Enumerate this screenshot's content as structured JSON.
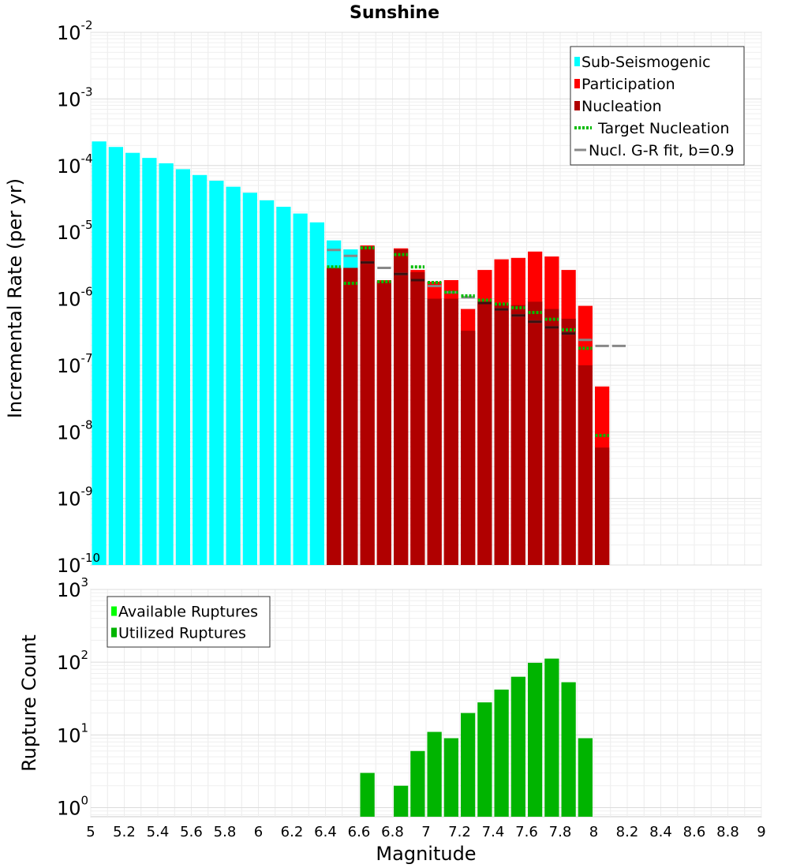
{
  "chart_data": [
    {
      "type": "bar",
      "title": "Sunshine",
      "xlabel": "",
      "ylabel": "Incremental Rate (per yr)",
      "xlim": [
        5,
        9
      ],
      "ylim": [
        1e-10,
        0.01
      ],
      "yscale": "log",
      "grid": true,
      "bin_width": 0.1,
      "legend_position": "top-right",
      "y_ticks": [
        {
          "base": "10",
          "exp": "-10",
          "value": 1e-10
        },
        {
          "base": "10",
          "exp": "-9",
          "value": 1e-09
        },
        {
          "base": "10",
          "exp": "-8",
          "value": 1e-08
        },
        {
          "base": "10",
          "exp": "-7",
          "value": 1e-07
        },
        {
          "base": "10",
          "exp": "-6",
          "value": 1e-06
        },
        {
          "base": "10",
          "exp": "-5",
          "value": 1e-05
        },
        {
          "base": "10",
          "exp": "-4",
          "value": 0.0001
        },
        {
          "base": "10",
          "exp": "-3",
          "value": 0.001
        },
        {
          "base": "10",
          "exp": "-2",
          "value": 0.01
        }
      ],
      "legend": [
        {
          "label": "Sub-Seismogenic",
          "color": "#00ffff",
          "kind": "box"
        },
        {
          "label": "Participation",
          "color": "#ff0000",
          "kind": "box"
        },
        {
          "label": "Nucleation",
          "color": "#b00000",
          "kind": "box"
        },
        {
          "label": "Target Nucleation",
          "color": "#00bb00",
          "kind": "dotted"
        },
        {
          "label": "Nucl. G-R fit, b=0.9",
          "color": "#888888",
          "kind": "line"
        }
      ],
      "series": [
        {
          "name": "Sub-Seismogenic",
          "color": "#00ffff",
          "x": [
            5.05,
            5.15,
            5.25,
            5.35,
            5.45,
            5.55,
            5.65,
            5.75,
            5.85,
            5.95,
            6.05,
            6.15,
            6.25,
            6.35,
            6.45,
            6.55
          ],
          "values": [
            0.00023,
            0.00019,
            0.000155,
            0.00013,
            0.000108,
            8.8e-05,
            7.2e-05,
            5.9e-05,
            4.8e-05,
            3.9e-05,
            3e-05,
            2.4e-05,
            1.9e-05,
            1.4e-05,
            7.5e-06,
            5.5e-06
          ]
        },
        {
          "name": "Participation",
          "color": "#ff0000",
          "x": [
            6.45,
            6.55,
            6.65,
            6.75,
            6.85,
            6.95,
            7.05,
            7.15,
            7.25,
            7.35,
            7.45,
            7.55,
            7.65,
            7.75,
            7.85,
            7.95,
            8.05
          ],
          "values": [
            2.9e-06,
            2.9e-06,
            6.3e-06,
            1.9e-06,
            5.7e-06,
            2.7e-06,
            1.8e-06,
            1.9e-06,
            7e-07,
            2.7e-06,
            3.9e-06,
            4.1e-06,
            5.1e-06,
            4.3e-06,
            2.7e-06,
            7.8e-07,
            4.8e-08
          ]
        },
        {
          "name": "Nucleation",
          "color": "#b00000",
          "x": [
            6.45,
            6.55,
            6.65,
            6.75,
            6.85,
            6.95,
            7.05,
            7.15,
            7.25,
            7.35,
            7.45,
            7.55,
            7.65,
            7.75,
            7.85,
            7.95,
            8.05
          ],
          "values": [
            2.9e-06,
            2.9e-06,
            6.1e-06,
            1.8e-06,
            5.5e-06,
            2.5e-06,
            1e-06,
            1e-06,
            3.3e-07,
            9e-07,
            8.5e-07,
            8e-07,
            9e-07,
            7e-07,
            5e-07,
            1e-07,
            5.8e-09
          ]
        },
        {
          "name": "Target Nucleation",
          "color": "#00bb00",
          "x": [
            6.45,
            6.55,
            6.65,
            6.75,
            6.85,
            6.95,
            7.05,
            7.15,
            7.25,
            7.35,
            7.45,
            7.55,
            7.65,
            7.75,
            7.85,
            7.95,
            8.05
          ],
          "values": [
            3e-06,
            1.7e-06,
            5.8e-06,
            1.8e-06,
            4.6e-06,
            3e-06,
            1.75e-06,
            1.25e-06,
            1.1e-06,
            9.5e-07,
            8.3e-07,
            7.3e-07,
            6.2e-07,
            4.9e-07,
            3.4e-07,
            1.8e-07,
            8.8e-09
          ]
        },
        {
          "name": "Nucl. G-R fit, b=0.9",
          "color": "#888888",
          "x": [
            6.45,
            6.55,
            6.65,
            6.75,
            6.85,
            6.95,
            7.05,
            7.15,
            7.25,
            7.35,
            7.45,
            7.55,
            7.65,
            7.75,
            7.85,
            7.95,
            8.05,
            8.15
          ],
          "values": [
            5.4e-06,
            4.4e-06,
            3.5e-06,
            2.9e-06,
            2.35e-06,
            1.9e-06,
            1.55e-06,
            1.25e-06,
            1.05e-06,
            8.6e-07,
            6.9e-07,
            5.6e-07,
            4.5e-07,
            3.7e-07,
            3e-07,
            2.4e-07,
            1.95e-07,
            1.95e-07
          ]
        }
      ]
    },
    {
      "type": "bar",
      "title": "",
      "xlabel": "Magnitude",
      "ylabel": "Rupture Count",
      "xlim": [
        5,
        9
      ],
      "ylim": [
        0.75,
        1000
      ],
      "yscale": "log",
      "grid": true,
      "bin_width": 0.1,
      "legend_position": "top-left",
      "x_ticks": [
        "5",
        "5.2",
        "5.4",
        "5.6",
        "5.8",
        "6",
        "6.2",
        "6.4",
        "6.6",
        "6.8",
        "7",
        "7.2",
        "7.4",
        "7.6",
        "7.8",
        "8",
        "8.2",
        "8.4",
        "8.6",
        "8.8",
        "9"
      ],
      "y_ticks": [
        {
          "base": "10",
          "exp": "0",
          "value": 1
        },
        {
          "base": "10",
          "exp": "1",
          "value": 10
        },
        {
          "base": "10",
          "exp": "2",
          "value": 100
        },
        {
          "base": "10",
          "exp": "3",
          "value": 1000
        }
      ],
      "legend": [
        {
          "label": "Available Ruptures",
          "color": "#00ff00",
          "kind": "box"
        },
        {
          "label": "Utilized Ruptures",
          "color": "#00b400",
          "kind": "box"
        }
      ],
      "series": [
        {
          "name": "Utilized Ruptures",
          "color": "#00b400",
          "x": [
            6.65,
            6.85,
            6.95,
            7.05,
            7.15,
            7.25,
            7.35,
            7.45,
            7.55,
            7.65,
            7.75,
            7.85,
            7.95
          ],
          "values": [
            3,
            2,
            6,
            11,
            9,
            20,
            28,
            42,
            63,
            98,
            112,
            53,
            9
          ]
        }
      ]
    }
  ]
}
